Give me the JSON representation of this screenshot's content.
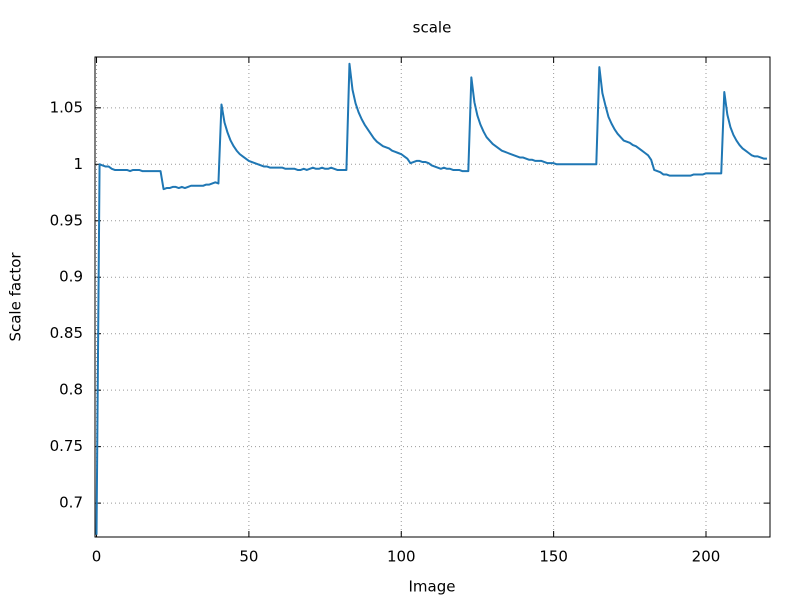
{
  "chart_data": {
    "type": "line",
    "title": "scale",
    "x_label": "Image",
    "y_label": "Scale factor",
    "x": [
      0,
      1,
      2,
      3,
      4,
      5,
      6,
      7,
      8,
      9,
      10,
      11,
      12,
      13,
      14,
      15,
      16,
      17,
      18,
      19,
      20,
      21,
      22,
      23,
      24,
      25,
      26,
      27,
      28,
      29,
      30,
      31,
      32,
      33,
      34,
      35,
      36,
      37,
      38,
      39,
      40,
      41,
      42,
      43,
      44,
      45,
      46,
      47,
      48,
      49,
      50,
      51,
      52,
      53,
      54,
      55,
      56,
      57,
      58,
      59,
      60,
      61,
      62,
      63,
      64,
      65,
      66,
      67,
      68,
      69,
      70,
      71,
      72,
      73,
      74,
      75,
      76,
      77,
      78,
      79,
      80,
      81,
      82,
      83,
      84,
      85,
      86,
      87,
      88,
      89,
      90,
      91,
      92,
      93,
      94,
      95,
      96,
      97,
      98,
      99,
      100,
      101,
      102,
      103,
      104,
      105,
      106,
      107,
      108,
      109,
      110,
      111,
      112,
      113,
      114,
      115,
      116,
      117,
      118,
      119,
      120,
      121,
      122,
      123,
      124,
      125,
      126,
      127,
      128,
      129,
      130,
      131,
      132,
      133,
      134,
      135,
      136,
      137,
      138,
      139,
      140,
      141,
      142,
      143,
      144,
      145,
      146,
      147,
      148,
      149,
      150,
      151,
      152,
      153,
      154,
      155,
      156,
      157,
      158,
      159,
      160,
      161,
      162,
      163,
      164,
      165,
      166,
      167,
      168,
      169,
      170,
      171,
      172,
      173,
      174,
      175,
      176,
      177,
      178,
      179,
      180,
      181,
      182,
      183,
      184,
      185,
      186,
      187,
      188,
      189,
      190,
      191,
      192,
      193,
      194,
      195,
      196,
      197,
      198,
      199,
      200,
      201,
      202,
      203,
      204,
      205,
      206,
      207,
      208,
      209,
      210,
      211,
      212,
      213,
      214,
      215,
      216,
      217,
      218,
      219,
      220
    ],
    "series": [
      {
        "name": "scale",
        "color": "#1f77b4",
        "values": [
          0.672,
          1.0,
          0.999,
          0.998,
          0.998,
          0.996,
          0.995,
          0.995,
          0.995,
          0.995,
          0.995,
          0.994,
          0.995,
          0.995,
          0.995,
          0.994,
          0.994,
          0.994,
          0.994,
          0.994,
          0.994,
          0.994,
          0.978,
          0.979,
          0.979,
          0.98,
          0.98,
          0.979,
          0.98,
          0.979,
          0.98,
          0.981,
          0.981,
          0.981,
          0.981,
          0.981,
          0.982,
          0.982,
          0.983,
          0.984,
          0.983,
          1.053,
          1.037,
          1.028,
          1.021,
          1.016,
          1.012,
          1.009,
          1.007,
          1.005,
          1.003,
          1.002,
          1.001,
          1.0,
          0.999,
          0.998,
          0.998,
          0.997,
          0.997,
          0.997,
          0.997,
          0.997,
          0.996,
          0.996,
          0.996,
          0.996,
          0.995,
          0.995,
          0.996,
          0.995,
          0.996,
          0.997,
          0.996,
          0.996,
          0.997,
          0.996,
          0.996,
          0.997,
          0.996,
          0.995,
          0.995,
          0.995,
          0.995,
          1.089,
          1.066,
          1.054,
          1.046,
          1.04,
          1.035,
          1.031,
          1.027,
          1.023,
          1.02,
          1.018,
          1.016,
          1.015,
          1.014,
          1.012,
          1.011,
          1.01,
          1.009,
          1.007,
          1.005,
          1.001,
          1.002,
          1.003,
          1.003,
          1.002,
          1.002,
          1.001,
          0.999,
          0.998,
          0.997,
          0.996,
          0.997,
          0.996,
          0.996,
          0.995,
          0.995,
          0.995,
          0.994,
          0.994,
          0.994,
          1.077,
          1.055,
          1.043,
          1.035,
          1.029,
          1.024,
          1.021,
          1.018,
          1.016,
          1.014,
          1.012,
          1.011,
          1.01,
          1.009,
          1.008,
          1.007,
          1.006,
          1.006,
          1.005,
          1.004,
          1.004,
          1.003,
          1.003,
          1.003,
          1.002,
          1.001,
          1.001,
          1.001,
          1.0,
          1.0,
          1.0,
          1.0,
          1.0,
          1.0,
          1.0,
          1.0,
          1.0,
          1.0,
          1.0,
          1.0,
          1.0,
          1.0,
          1.086,
          1.063,
          1.052,
          1.042,
          1.036,
          1.031,
          1.027,
          1.024,
          1.021,
          1.02,
          1.019,
          1.017,
          1.016,
          1.014,
          1.012,
          1.01,
          1.008,
          1.004,
          0.995,
          0.994,
          0.993,
          0.991,
          0.991,
          0.99,
          0.99,
          0.99,
          0.99,
          0.99,
          0.99,
          0.99,
          0.99,
          0.991,
          0.991,
          0.991,
          0.991,
          0.992,
          0.992,
          0.992,
          0.992,
          0.992,
          0.992,
          1.064,
          1.044,
          1.033,
          1.026,
          1.021,
          1.017,
          1.014,
          1.012,
          1.01,
          1.008,
          1.007,
          1.007,
          1.006,
          1.005,
          1.005
        ]
      }
    ],
    "xlim": [
      -0.5,
      221
    ],
    "xticks": [
      0,
      50,
      100,
      150,
      200
    ],
    "ylim": [
      0.67,
      1.095
    ],
    "yticks": [
      0.7,
      0.75,
      0.8,
      0.85,
      0.9,
      0.95,
      1,
      1.05
    ],
    "grid": true
  }
}
